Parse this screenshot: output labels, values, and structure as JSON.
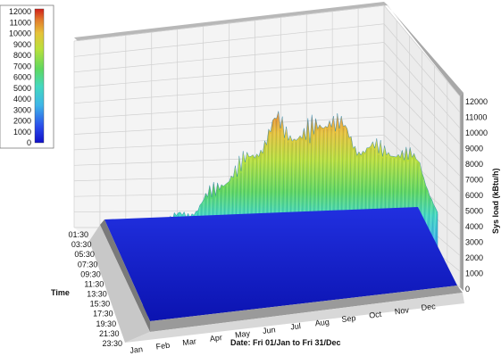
{
  "chart_data": {
    "type": "3d-surface",
    "title": "",
    "xlabel": "Date: Fri 01/Jan to Fri 31/Dec",
    "ylabel": "Time",
    "zlabel": "Sys load (kBtu/h)",
    "x_ticks": [
      "Jan",
      "Feb",
      "Mar",
      "Apr",
      "May",
      "Jun",
      "Jul",
      "Aug",
      "Sep",
      "Oct",
      "Nov",
      "Dec"
    ],
    "y_ticks": [
      "01:30",
      "03:30",
      "05:30",
      "07:30",
      "09:30",
      "11:30",
      "13:30",
      "15:30",
      "17:30",
      "19:30",
      "21:30",
      "23:30"
    ],
    "z_ticks": [
      "0",
      "1000",
      "2000",
      "3000",
      "4000",
      "5000",
      "6000",
      "7000",
      "8000",
      "9000",
      "10000",
      "11000",
      "12000"
    ],
    "zlim": [
      0,
      12000
    ],
    "legend": {
      "position": "top-left",
      "ticks": [
        "12000",
        "11000",
        "10000",
        "9000",
        "8000",
        "7000",
        "6000",
        "5000",
        "4000",
        "3000",
        "2000",
        "1000",
        "0"
      ]
    },
    "monthly_peak_load": [
      3000,
      4500,
      5000,
      6800,
      8200,
      10500,
      8900,
      10200,
      7000,
      6300,
      5200,
      3200
    ],
    "grid": true,
    "colors": {
      "low": "#1a1ad6",
      "mid": "#3fd0d0",
      "high_mid": "#9be04a",
      "high": "#d62a1a"
    }
  }
}
